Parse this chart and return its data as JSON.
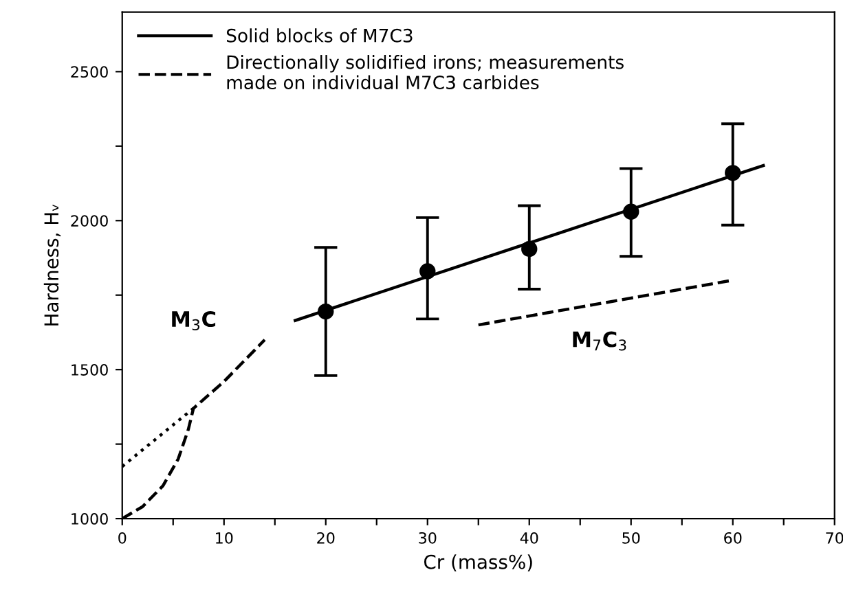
{
  "chart_data": {
    "type": "line",
    "xlabel": "Cr (mass%)",
    "ylabel": "Hardness, Hᵥ",
    "xlim": [
      0,
      70
    ],
    "ylim": [
      1000,
      2700
    ],
    "xticks": [
      0,
      {
        "value": 5,
        "label": null
      },
      10,
      {
        "value": 15,
        "label": null
      },
      20,
      {
        "value": 25,
        "label": null
      },
      30,
      {
        "value": 35,
        "label": null
      },
      40,
      {
        "value": 45,
        "label": null
      },
      50,
      {
        "value": 55,
        "label": null
      },
      60,
      {
        "value": 65,
        "label": null
      },
      70
    ],
    "yticks": [
      1000,
      {
        "value": 1250,
        "label": null
      },
      1500,
      {
        "value": 1750,
        "label": null
      },
      2000,
      {
        "value": 2250,
        "label": null
      },
      2500
    ],
    "grid": false,
    "legend": "top left",
    "series": [
      {
        "name": "Solid blocks of M7C3",
        "color": "#000000",
        "line_style": "solid",
        "marker": "none",
        "x": [
          17,
          63
        ],
        "values": [
          1665,
          2185
        ]
      },
      {
        "type": "scatter",
        "color": "#000000",
        "marker": "circle",
        "x": [
          20,
          30,
          40,
          50,
          60
        ],
        "values": [
          1695,
          1830,
          1905,
          2030,
          2160
        ],
        "errors": [
          [
            1480,
            1910
          ],
          [
            1670,
            2010
          ],
          [
            1770,
            2050
          ],
          [
            1880,
            2175
          ],
          [
            1985,
            2325
          ]
        ]
      },
      {
        "name": "Directionally solidified irons; measurements\nmade on individual M7C3 carbides",
        "color": "#000000",
        "line_style": "dashed",
        "marker": "none",
        "x": [
          35,
          60
        ],
        "values": [
          1650,
          1800
        ]
      },
      {
        "color": "#000000",
        "line_style": "dashed",
        "marker": "none",
        "x": [
          0,
          2,
          4,
          5.5,
          6.5,
          7,
          10,
          14
        ],
        "values": [
          1000,
          1040,
          1110,
          1200,
          1300,
          1370,
          1460,
          1600
        ]
      },
      {
        "color": "#000000",
        "line_style": "dotted",
        "marker": "none",
        "x": [
          0,
          7
        ],
        "values": [
          1175,
          1370
        ]
      }
    ],
    "annotations": [
      "M$_{3}$C",
      "M$_{7}$C$_{3}$"
    ]
  }
}
